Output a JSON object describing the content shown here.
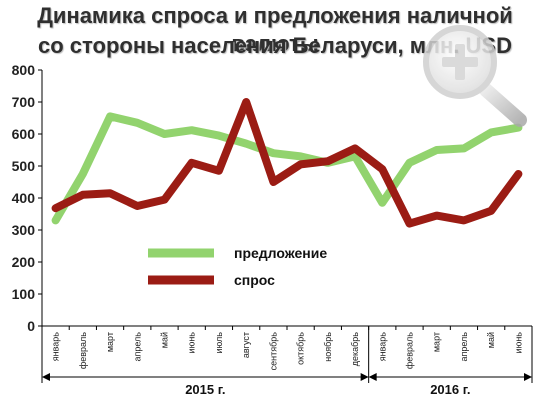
{
  "chart_data": {
    "type": "line",
    "title": "Динамика спроса и предложения наличной валюты",
    "subtitle": "со стороны населения Беларуси, млн. USD",
    "categories": [
      "январь",
      "февраль",
      "март",
      "апрель",
      "май",
      "июнь",
      "июль",
      "август",
      "сентябрь",
      "октябрь",
      "ноябрь",
      "декабрь",
      "январь",
      "февраль",
      "март",
      "апрель",
      "май",
      "июнь"
    ],
    "groups": [
      {
        "label": "2015 г.",
        "start": 0,
        "end": 11
      },
      {
        "label": "2016 г.",
        "start": 12,
        "end": 17
      }
    ],
    "series": [
      {
        "name": "предложение",
        "color": "#92d36e",
        "values": [
          330,
          475,
          655,
          635,
          600,
          612,
          595,
          570,
          540,
          530,
          510,
          530,
          385,
          510,
          550,
          555,
          605,
          620
        ]
      },
      {
        "name": "спрос",
        "color": "#9b1c14",
        "values": [
          368,
          410,
          415,
          375,
          395,
          510,
          485,
          700,
          450,
          505,
          515,
          555,
          490,
          320,
          345,
          330,
          360,
          475
        ]
      }
    ],
    "yticks": [
      0,
      100,
      200,
      300,
      400,
      500,
      600,
      700,
      800
    ],
    "ylim": [
      0,
      800
    ],
    "grid": false,
    "legend": "center-left"
  },
  "decor": {
    "zoom_icon": "magnifier-plus-icon"
  }
}
